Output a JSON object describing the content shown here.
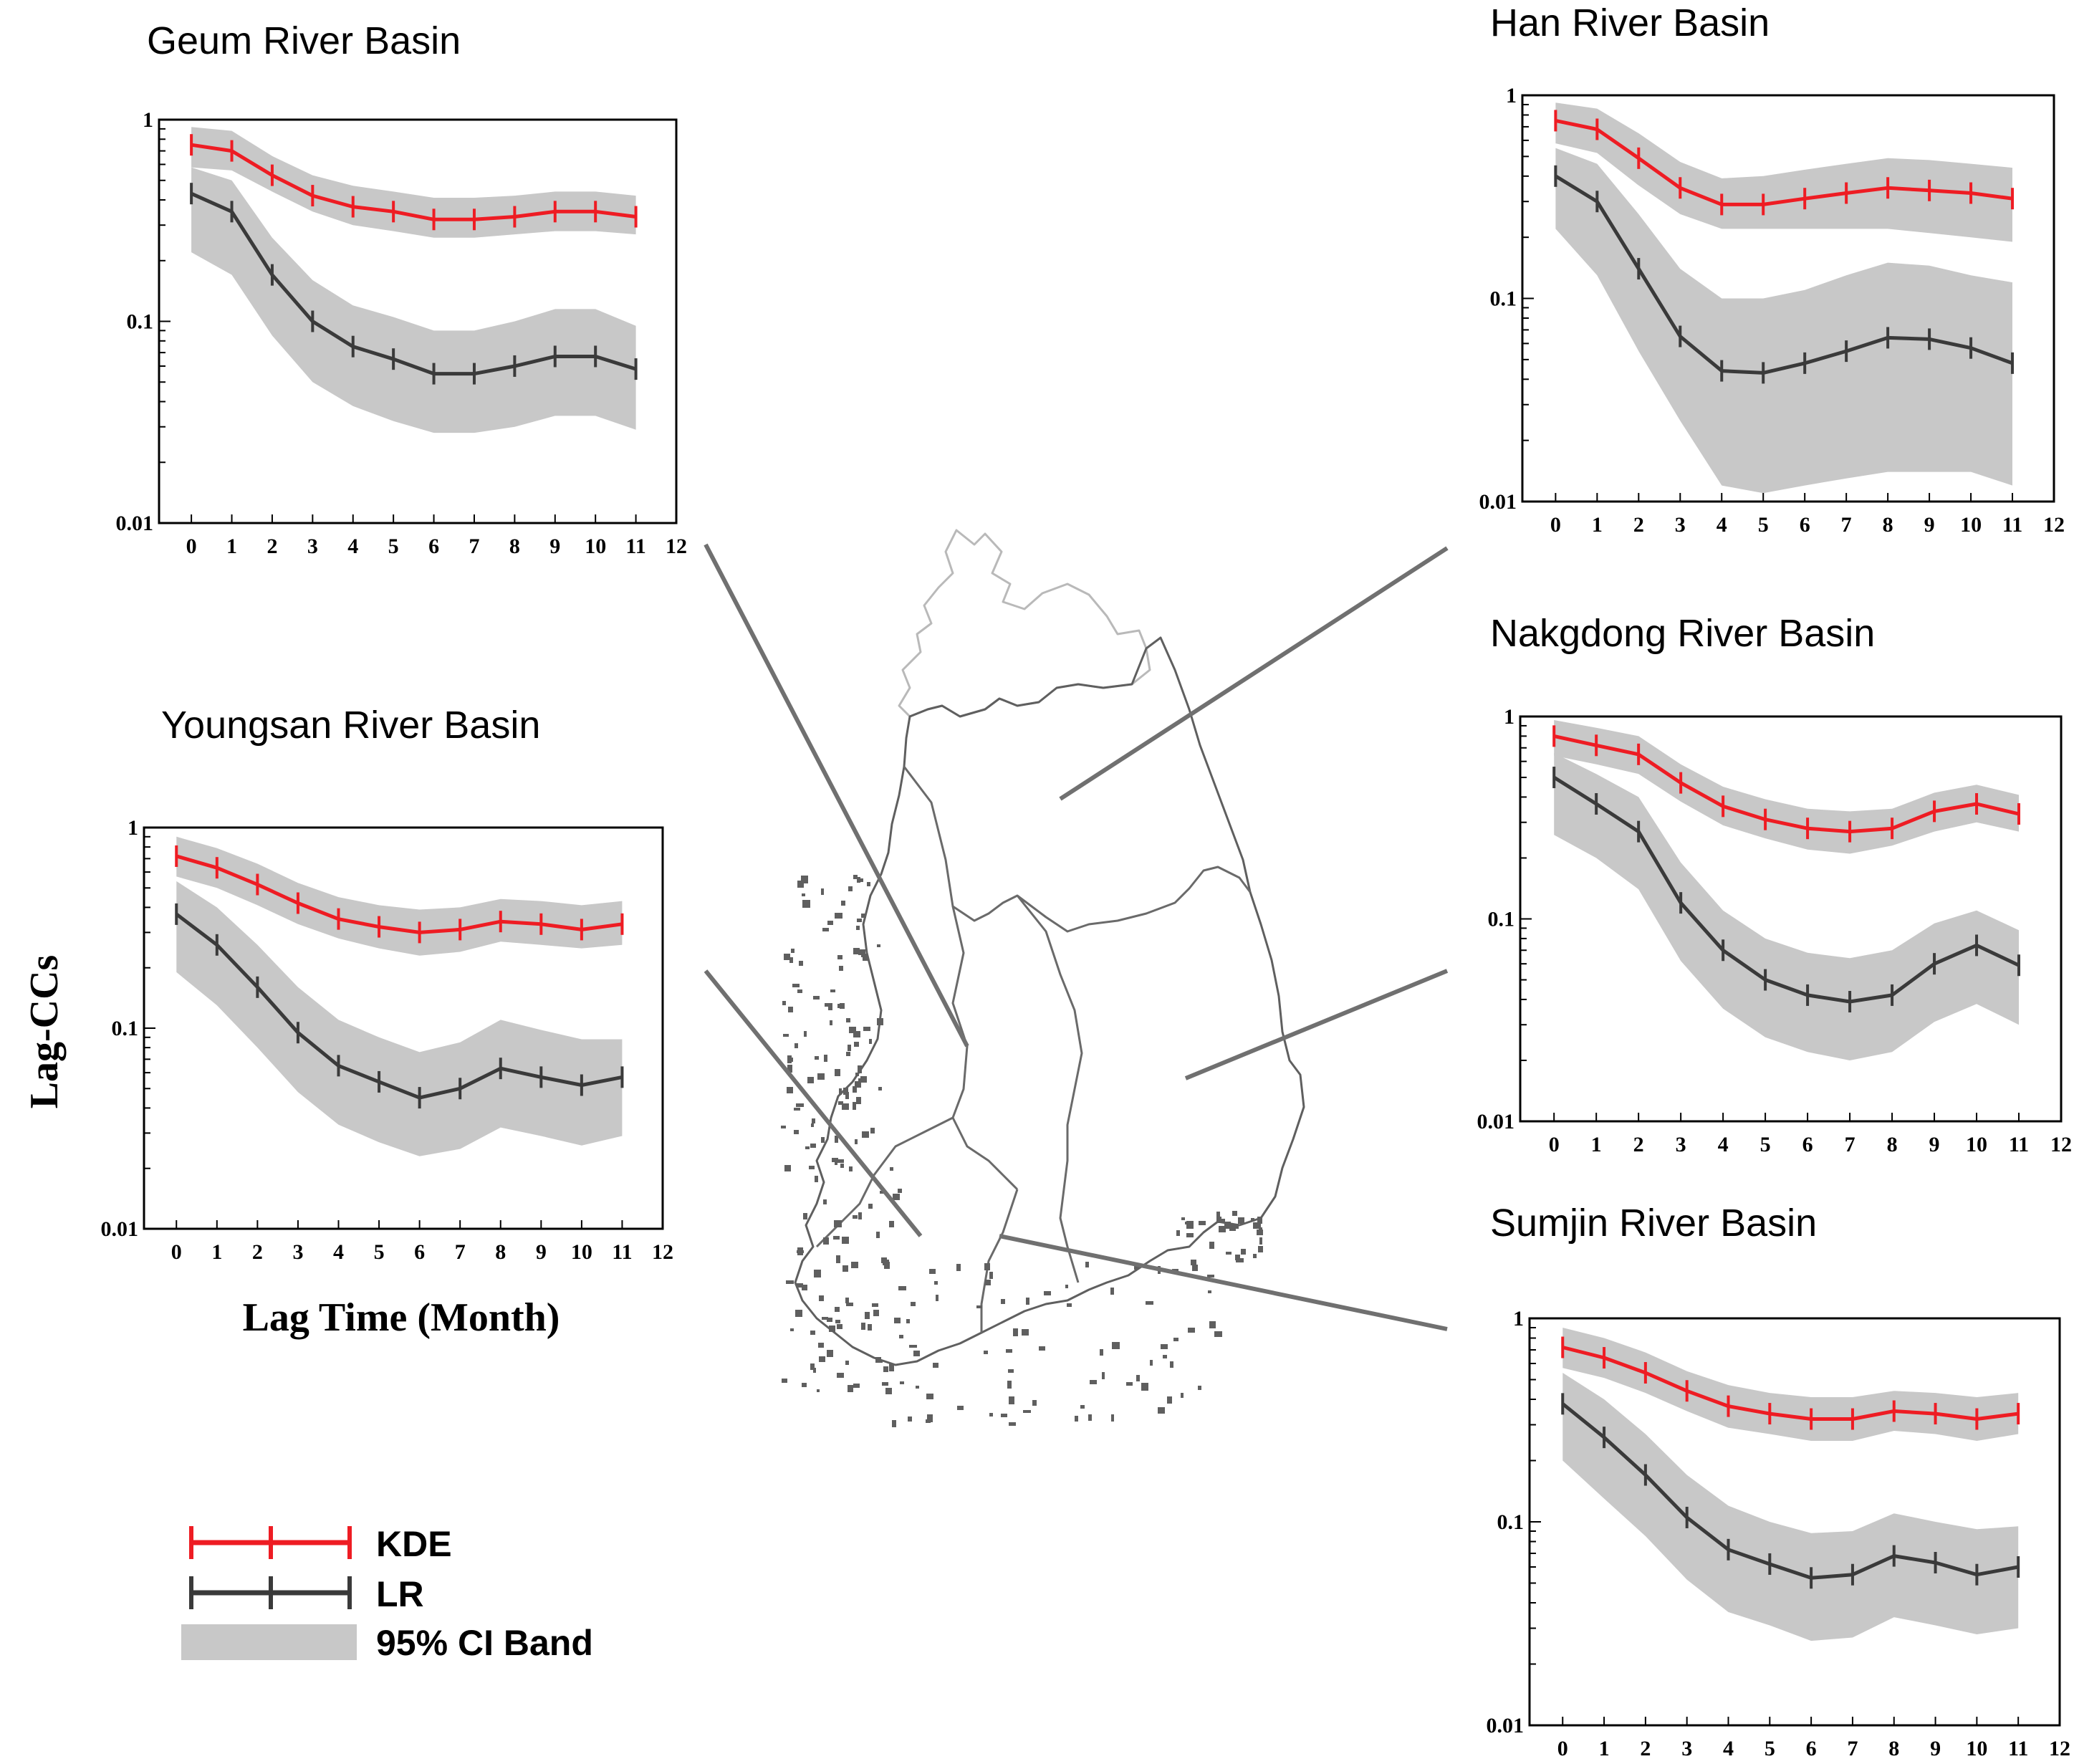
{
  "legend": {
    "kde": "KDE",
    "lr": "LR",
    "band": "95% CI Band"
  },
  "axes": {
    "ylabel": "Lag-CCs",
    "xlabel": "Lag Time (Month)",
    "yticks": [
      "1",
      "0.1",
      "0.01"
    ],
    "xticks": [
      "0",
      "1",
      "2",
      "3",
      "4",
      "5",
      "6",
      "7",
      "8",
      "9",
      "10",
      "11",
      "12"
    ]
  },
  "colors": {
    "kde": "#ee1c23",
    "lr": "#3a3a3a",
    "band": "#c8c8c8",
    "map": "#5f5f5f",
    "connector": "#707070"
  },
  "map": {
    "icon": "south-korea-river-basin-map"
  },
  "chart_data": [
    {
      "type": "line",
      "title": "Geum River Basin",
      "y_scale": "log",
      "ylim": [
        0.01,
        1
      ],
      "xlim": [
        -0.8,
        12
      ],
      "x": [
        0,
        1,
        2,
        3,
        4,
        5,
        6,
        7,
        8,
        9,
        10,
        11
      ],
      "series": [
        {
          "name": "KDE",
          "values": [
            0.75,
            0.7,
            0.53,
            0.42,
            0.37,
            0.35,
            0.32,
            0.32,
            0.33,
            0.35,
            0.35,
            0.33
          ],
          "ci_lower": [
            0.58,
            0.56,
            0.44,
            0.35,
            0.3,
            0.28,
            0.26,
            0.26,
            0.27,
            0.28,
            0.28,
            0.27
          ],
          "ci_upper": [
            0.92,
            0.88,
            0.66,
            0.53,
            0.47,
            0.44,
            0.41,
            0.41,
            0.42,
            0.44,
            0.44,
            0.42
          ]
        },
        {
          "name": "LR",
          "values": [
            0.43,
            0.35,
            0.17,
            0.1,
            0.075,
            0.065,
            0.055,
            0.055,
            0.06,
            0.067,
            0.067,
            0.058
          ],
          "ci_lower": [
            0.22,
            0.17,
            0.085,
            0.05,
            0.038,
            0.032,
            0.028,
            0.028,
            0.03,
            0.034,
            0.034,
            0.029
          ],
          "ci_upper": [
            0.58,
            0.5,
            0.26,
            0.16,
            0.12,
            0.105,
            0.09,
            0.09,
            0.1,
            0.115,
            0.115,
            0.095
          ]
        }
      ]
    },
    {
      "type": "line",
      "title": "Youngsan River Basin",
      "y_scale": "log",
      "ylim": [
        0.01,
        1
      ],
      "xlim": [
        -0.8,
        12
      ],
      "x": [
        0,
        1,
        2,
        3,
        4,
        5,
        6,
        7,
        8,
        9,
        10,
        11
      ],
      "series": [
        {
          "name": "KDE",
          "values": [
            0.72,
            0.63,
            0.52,
            0.42,
            0.35,
            0.32,
            0.3,
            0.31,
            0.34,
            0.33,
            0.31,
            0.33
          ],
          "ci_lower": [
            0.57,
            0.5,
            0.41,
            0.33,
            0.28,
            0.25,
            0.23,
            0.24,
            0.27,
            0.26,
            0.25,
            0.26
          ],
          "ci_upper": [
            0.9,
            0.79,
            0.66,
            0.53,
            0.45,
            0.41,
            0.39,
            0.4,
            0.44,
            0.43,
            0.41,
            0.43
          ]
        },
        {
          "name": "LR",
          "values": [
            0.37,
            0.26,
            0.16,
            0.095,
            0.065,
            0.054,
            0.045,
            0.05,
            0.063,
            0.057,
            0.052,
            0.057
          ],
          "ci_lower": [
            0.19,
            0.13,
            0.08,
            0.048,
            0.033,
            0.027,
            0.023,
            0.025,
            0.032,
            0.029,
            0.026,
            0.029
          ],
          "ci_upper": [
            0.54,
            0.4,
            0.26,
            0.16,
            0.11,
            0.09,
            0.076,
            0.085,
            0.11,
            0.098,
            0.088,
            0.088
          ]
        }
      ]
    },
    {
      "type": "line",
      "title": "Han River Basin",
      "y_scale": "log",
      "ylim": [
        0.01,
        1
      ],
      "xlim": [
        -0.8,
        12
      ],
      "x": [
        0,
        1,
        2,
        3,
        4,
        5,
        6,
        7,
        8,
        9,
        10,
        11
      ],
      "series": [
        {
          "name": "KDE",
          "values": [
            0.75,
            0.68,
            0.49,
            0.35,
            0.29,
            0.29,
            0.31,
            0.33,
            0.35,
            0.34,
            0.33,
            0.31
          ],
          "ci_lower": [
            0.58,
            0.52,
            0.36,
            0.26,
            0.22,
            0.22,
            0.22,
            0.22,
            0.22,
            0.21,
            0.2,
            0.19
          ],
          "ci_upper": [
            0.92,
            0.86,
            0.65,
            0.47,
            0.39,
            0.4,
            0.43,
            0.46,
            0.49,
            0.48,
            0.46,
            0.44
          ]
        },
        {
          "name": "LR",
          "values": [
            0.4,
            0.3,
            0.14,
            0.065,
            0.044,
            0.043,
            0.048,
            0.055,
            0.064,
            0.063,
            0.057,
            0.048
          ],
          "ci_lower": [
            0.22,
            0.13,
            0.055,
            0.025,
            0.012,
            0.011,
            0.012,
            0.013,
            0.014,
            0.014,
            0.014,
            0.012
          ],
          "ci_upper": [
            0.55,
            0.46,
            0.26,
            0.14,
            0.1,
            0.1,
            0.11,
            0.13,
            0.15,
            0.145,
            0.13,
            0.12
          ]
        }
      ]
    },
    {
      "type": "line",
      "title": "Nakgdong River Basin",
      "y_scale": "log",
      "ylim": [
        0.01,
        1
      ],
      "xlim": [
        -0.8,
        12
      ],
      "x": [
        0,
        1,
        2,
        3,
        4,
        5,
        6,
        7,
        8,
        9,
        10,
        11
      ],
      "series": [
        {
          "name": "KDE",
          "values": [
            0.8,
            0.72,
            0.65,
            0.47,
            0.36,
            0.31,
            0.28,
            0.27,
            0.28,
            0.34,
            0.37,
            0.33
          ],
          "ci_lower": [
            0.64,
            0.58,
            0.52,
            0.38,
            0.29,
            0.25,
            0.22,
            0.21,
            0.23,
            0.27,
            0.3,
            0.27
          ],
          "ci_upper": [
            0.96,
            0.88,
            0.8,
            0.58,
            0.45,
            0.39,
            0.35,
            0.34,
            0.35,
            0.42,
            0.46,
            0.41
          ]
        },
        {
          "name": "LR",
          "values": [
            0.5,
            0.37,
            0.27,
            0.12,
            0.07,
            0.05,
            0.042,
            0.039,
            0.042,
            0.06,
            0.074,
            0.059
          ],
          "ci_lower": [
            0.26,
            0.2,
            0.14,
            0.062,
            0.036,
            0.026,
            0.022,
            0.02,
            0.022,
            0.031,
            0.038,
            0.03
          ],
          "ci_upper": [
            0.66,
            0.52,
            0.4,
            0.19,
            0.11,
            0.08,
            0.068,
            0.064,
            0.07,
            0.095,
            0.11,
            0.088
          ]
        }
      ]
    },
    {
      "type": "line",
      "title": "Sumjin River Basin",
      "y_scale": "log",
      "ylim": [
        0.01,
        1
      ],
      "xlim": [
        -0.8,
        12
      ],
      "x": [
        0,
        1,
        2,
        3,
        4,
        5,
        6,
        7,
        8,
        9,
        10,
        11
      ],
      "series": [
        {
          "name": "KDE",
          "values": [
            0.72,
            0.64,
            0.54,
            0.44,
            0.37,
            0.34,
            0.32,
            0.32,
            0.35,
            0.34,
            0.32,
            0.34
          ],
          "ci_lower": [
            0.57,
            0.51,
            0.43,
            0.35,
            0.29,
            0.27,
            0.25,
            0.25,
            0.28,
            0.27,
            0.25,
            0.27
          ],
          "ci_upper": [
            0.9,
            0.8,
            0.68,
            0.55,
            0.47,
            0.43,
            0.41,
            0.41,
            0.44,
            0.43,
            0.41,
            0.43
          ]
        },
        {
          "name": "LR",
          "values": [
            0.38,
            0.26,
            0.17,
            0.105,
            0.073,
            0.062,
            0.053,
            0.055,
            0.068,
            0.063,
            0.055,
            0.06
          ],
          "ci_lower": [
            0.2,
            0.13,
            0.085,
            0.052,
            0.036,
            0.031,
            0.026,
            0.027,
            0.034,
            0.031,
            0.028,
            0.03
          ],
          "ci_upper": [
            0.54,
            0.4,
            0.27,
            0.17,
            0.12,
            0.1,
            0.088,
            0.09,
            0.11,
            0.1,
            0.092,
            0.095
          ]
        }
      ]
    }
  ]
}
